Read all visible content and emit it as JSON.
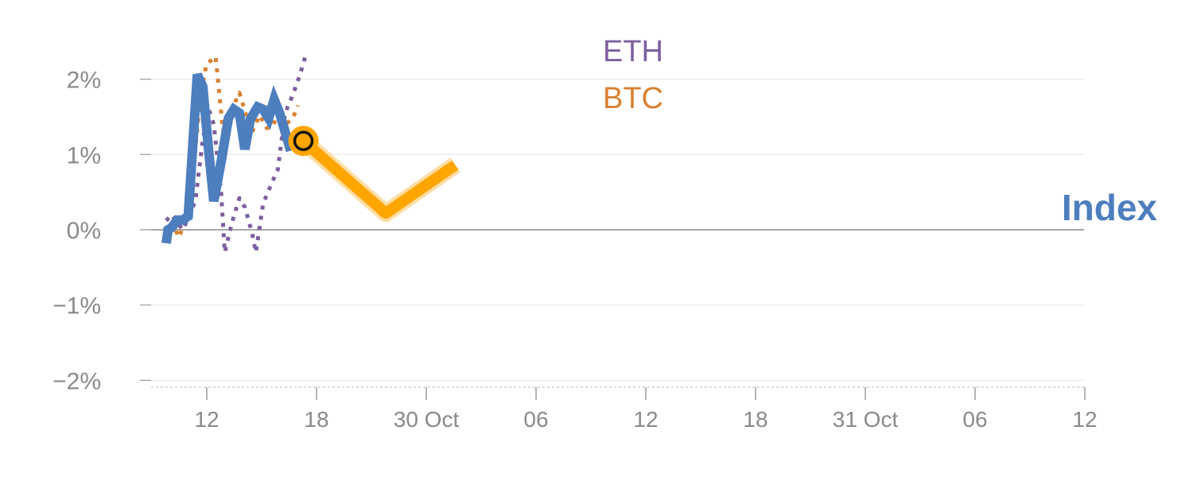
{
  "chart_data": {
    "type": "line",
    "title": "",
    "xlabel": "",
    "ylabel": "",
    "x_tick_labels": [
      "12",
      "18",
      "30 Oct",
      "06",
      "12",
      "18",
      "31 Oct",
      "06",
      "12"
    ],
    "y_tick_labels": [
      "2%",
      "1%",
      "0%",
      "−1%",
      "−2%"
    ],
    "y_ticks": [
      2,
      1,
      0,
      -1,
      -2
    ],
    "ylim": [
      -2.1,
      2.3
    ],
    "grid": true,
    "series": [
      {
        "name": "Index",
        "color": "#4d7ebe",
        "style": "solid",
        "points": [
          [
            0.0,
            -0.18
          ],
          [
            0.1,
            0.0
          ],
          [
            0.3,
            0.03
          ],
          [
            0.6,
            0.13
          ],
          [
            0.9,
            0.13
          ],
          [
            1.2,
            0.18
          ],
          [
            1.5,
            1.3
          ],
          [
            1.7,
            2.06
          ],
          [
            2.0,
            1.9
          ],
          [
            2.3,
            1.1
          ],
          [
            2.6,
            0.38
          ],
          [
            3.0,
            0.9
          ],
          [
            3.4,
            1.48
          ],
          [
            3.7,
            1.6
          ],
          [
            4.0,
            1.55
          ],
          [
            4.3,
            1.07
          ],
          [
            4.6,
            1.47
          ],
          [
            5.0,
            1.63
          ],
          [
            5.3,
            1.6
          ],
          [
            5.6,
            1.48
          ],
          [
            5.9,
            1.73
          ],
          [
            6.2,
            1.55
          ],
          [
            6.5,
            1.3
          ],
          [
            6.8,
            1.05
          ]
        ]
      },
      {
        "name": "BTC",
        "color": "#d98131",
        "style": "dotted",
        "points": [
          [
            0.0,
            -0.13
          ],
          [
            0.4,
            0.05
          ],
          [
            0.7,
            -0.1
          ],
          [
            1.0,
            0.1
          ],
          [
            1.3,
            0.55
          ],
          [
            1.6,
            1.1
          ],
          [
            1.9,
            1.82
          ],
          [
            2.2,
            2.2
          ],
          [
            2.7,
            2.3
          ],
          [
            3.1,
            1.32
          ],
          [
            3.5,
            1.55
          ],
          [
            4.0,
            1.82
          ],
          [
            4.4,
            1.5
          ],
          [
            4.7,
            1.3
          ],
          [
            5.1,
            1.52
          ],
          [
            5.5,
            1.35
          ],
          [
            5.8,
            1.37
          ],
          [
            6.2,
            1.58
          ],
          [
            6.5,
            1.4
          ],
          [
            6.9,
            1.47
          ],
          [
            7.2,
            1.65
          ]
        ]
      },
      {
        "name": "ETH",
        "color": "#7d5fa0",
        "style": "dotted",
        "points": [
          [
            0.0,
            0.12
          ],
          [
            0.3,
            0.2
          ],
          [
            0.6,
            0.1
          ],
          [
            0.9,
            0.0
          ],
          [
            1.3,
            0.2
          ],
          [
            1.6,
            0.4
          ],
          [
            2.0,
            1.2
          ],
          [
            2.3,
            1.62
          ],
          [
            2.6,
            1.4
          ],
          [
            3.0,
            0.5
          ],
          [
            3.2,
            -0.3
          ],
          [
            3.6,
            0.1
          ],
          [
            4.0,
            0.42
          ],
          [
            4.3,
            0.3
          ],
          [
            4.7,
            -0.05
          ],
          [
            4.9,
            -0.3
          ],
          [
            5.3,
            0.35
          ],
          [
            5.7,
            0.58
          ],
          [
            6.1,
            0.8
          ],
          [
            6.5,
            1.55
          ],
          [
            6.9,
            1.78
          ],
          [
            7.3,
            2.05
          ],
          [
            7.6,
            2.3
          ]
        ]
      },
      {
        "name": "",
        "color": "#ffa500",
        "style": "projection",
        "points": [
          [
            7.5,
            1.18
          ],
          [
            12.0,
            0.22
          ],
          [
            15.8,
            0.86
          ]
        ]
      }
    ],
    "marker": {
      "x": 7.5,
      "y": 1.18,
      "fill": "#ffa500"
    },
    "labels": {
      "eth": "ETH",
      "btc": "BTC",
      "index": "Index"
    }
  }
}
